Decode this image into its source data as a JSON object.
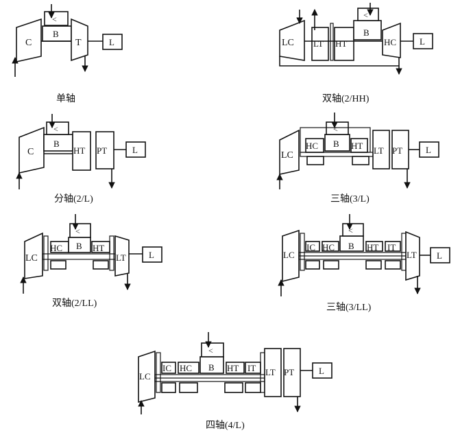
{
  "diagrams": [
    {
      "id": "single",
      "caption": "单轴",
      "labels": {
        "compressor": "C",
        "burner": "B",
        "turbine": "T",
        "load": "L",
        "burner_symbol": "<"
      }
    },
    {
      "id": "twin_hh",
      "caption": "双轴(2/HH)",
      "labels": {
        "lc": "LC",
        "lt": "LT",
        "ht": "HT",
        "burner": "B",
        "hc": "HC",
        "load": "L",
        "burner_symbol": "<"
      }
    },
    {
      "id": "split",
      "caption": "分轴(2/L)",
      "labels": {
        "compressor": "C",
        "burner": "B",
        "ht": "HT",
        "pt": "PT",
        "load": "L",
        "burner_symbol": "<"
      }
    },
    {
      "id": "three_l",
      "caption": "三轴(3/L)",
      "labels": {
        "lc": "LC",
        "hc": "HC",
        "burner": "B",
        "ht": "HT",
        "lt": "LT",
        "pt": "PT",
        "load": "L",
        "burner_symbol": "<"
      }
    },
    {
      "id": "twin_ll",
      "caption": "双轴(2/LL)",
      "labels": {
        "lc": "LC",
        "hc": "HC",
        "burner": "B",
        "ht": "HT",
        "lt": "LT",
        "load": "L",
        "burner_symbol": "<"
      }
    },
    {
      "id": "three_ll",
      "caption": "三轴(3/LL)",
      "labels": {
        "lc": "LC",
        "ic": "IC",
        "hc": "HC",
        "burner": "B",
        "ht": "HT",
        "it": "IT",
        "lt": "LT",
        "load": "L",
        "burner_symbol": "<"
      }
    },
    {
      "id": "four_l",
      "caption": "四轴(4/L)",
      "labels": {
        "lc": "LC",
        "ic": "IC",
        "hc": "HC",
        "burner": "B",
        "ht": "HT",
        "it": "IT",
        "lt": "LT",
        "pt": "PT",
        "load": "L",
        "burner_symbol": "<"
      }
    }
  ]
}
